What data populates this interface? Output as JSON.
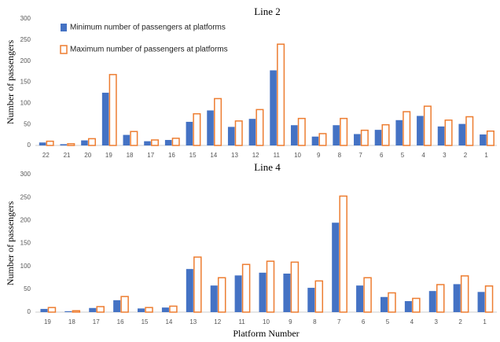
{
  "chart_data": [
    {
      "type": "bar",
      "title": "Line 2",
      "y_label": "Number of passengers",
      "categories": [
        "22",
        "21",
        "20",
        "19",
        "18",
        "17",
        "16",
        "15",
        "14",
        "13",
        "12",
        "11",
        "10",
        "9",
        "8",
        "7",
        "6",
        "5",
        "4",
        "3",
        "2",
        "1"
      ],
      "series": [
        {
          "name": "Minimum number of passengers at platforms",
          "color": "#4472c4",
          "style": "filled",
          "values": [
            7,
            3,
            12,
            125,
            25,
            10,
            13,
            56,
            83,
            44,
            63,
            178,
            48,
            21,
            48,
            27,
            37,
            60,
            70,
            45,
            51,
            26
          ]
        },
        {
          "name": "Maximum number of passengers at platforms",
          "color": "#ed7d31",
          "style": "outline",
          "values": [
            10,
            4,
            16,
            168,
            33,
            13,
            17,
            75,
            111,
            58,
            85,
            240,
            64,
            28,
            64,
            36,
            49,
            80,
            93,
            60,
            68,
            34
          ]
        }
      ],
      "ylim": [
        0,
        300
      ],
      "yticks": [
        0,
        50,
        100,
        150,
        200,
        250,
        300
      ],
      "grid": false,
      "legend": "upper left"
    },
    {
      "type": "bar",
      "title": "Line 4",
      "y_label": "Number of passengers",
      "x_label": "Platform Number",
      "categories": [
        "19",
        "18",
        "17",
        "16",
        "15",
        "14",
        "13",
        "12",
        "11",
        "10",
        "9",
        "8",
        "7",
        "6",
        "5",
        "4",
        "3",
        "2",
        "1"
      ],
      "series": [
        {
          "color": "#4472c4",
          "style": "filled",
          "values": [
            7,
            2,
            9,
            26,
            8,
            10,
            94,
            58,
            80,
            86,
            84,
            53,
            195,
            58,
            33,
            24,
            46,
            61,
            44
          ]
        },
        {
          "color": "#ed7d31",
          "style": "outline",
          "values": [
            10,
            3,
            12,
            34,
            10,
            13,
            120,
            75,
            104,
            111,
            109,
            68,
            253,
            75,
            42,
            30,
            60,
            79,
            57
          ]
        }
      ],
      "ylim": [
        0,
        300
      ],
      "yticks": [
        0,
        50,
        100,
        150,
        200,
        250,
        300
      ],
      "grid": false
    }
  ]
}
